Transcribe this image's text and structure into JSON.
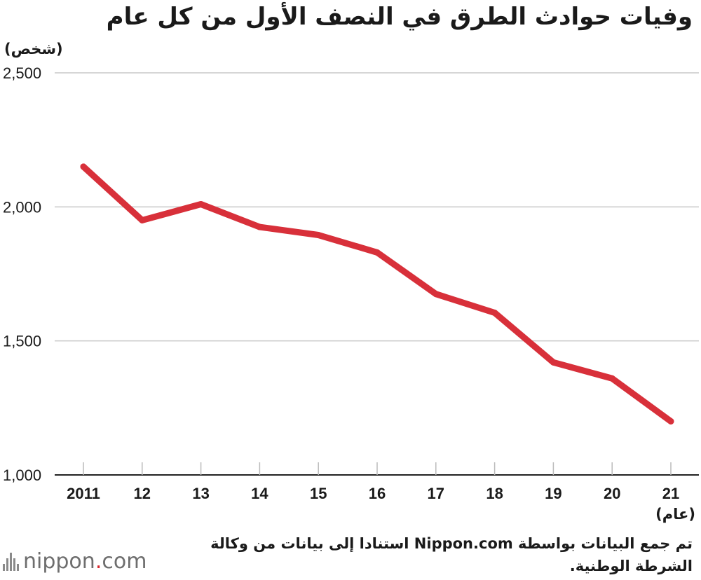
{
  "chart_data": {
    "type": "line",
    "title": "وفيات حوادث الطرق في النصف الأول من كل عام",
    "ylabel": "(شخص)",
    "xlabel": "(عام)",
    "ylim": [
      1000,
      2500
    ],
    "ytick_labels": [
      "1,000",
      "1,500",
      "2,000",
      "2,500"
    ],
    "yticks": [
      1000,
      1500,
      2000,
      2500
    ],
    "categories": [
      "2011",
      "12",
      "13",
      "14",
      "15",
      "16",
      "17",
      "18",
      "19",
      "20",
      "21"
    ],
    "series": [
      {
        "values": [
          2150,
          1950,
          2010,
          1925,
          1895,
          1830,
          1675,
          1605,
          1420,
          1360,
          1200
        ]
      }
    ],
    "line_color": "#d8303a",
    "grid": "horizontal"
  },
  "source_text": "تم جمع البيانات بواسطة Nippon.com استنادا إلى بيانات من وكالة الشرطة الوطنية.",
  "logo": {
    "word": "nippon",
    "dot": ".",
    "suffix": "com",
    "icon": "nippon-bars-icon"
  }
}
